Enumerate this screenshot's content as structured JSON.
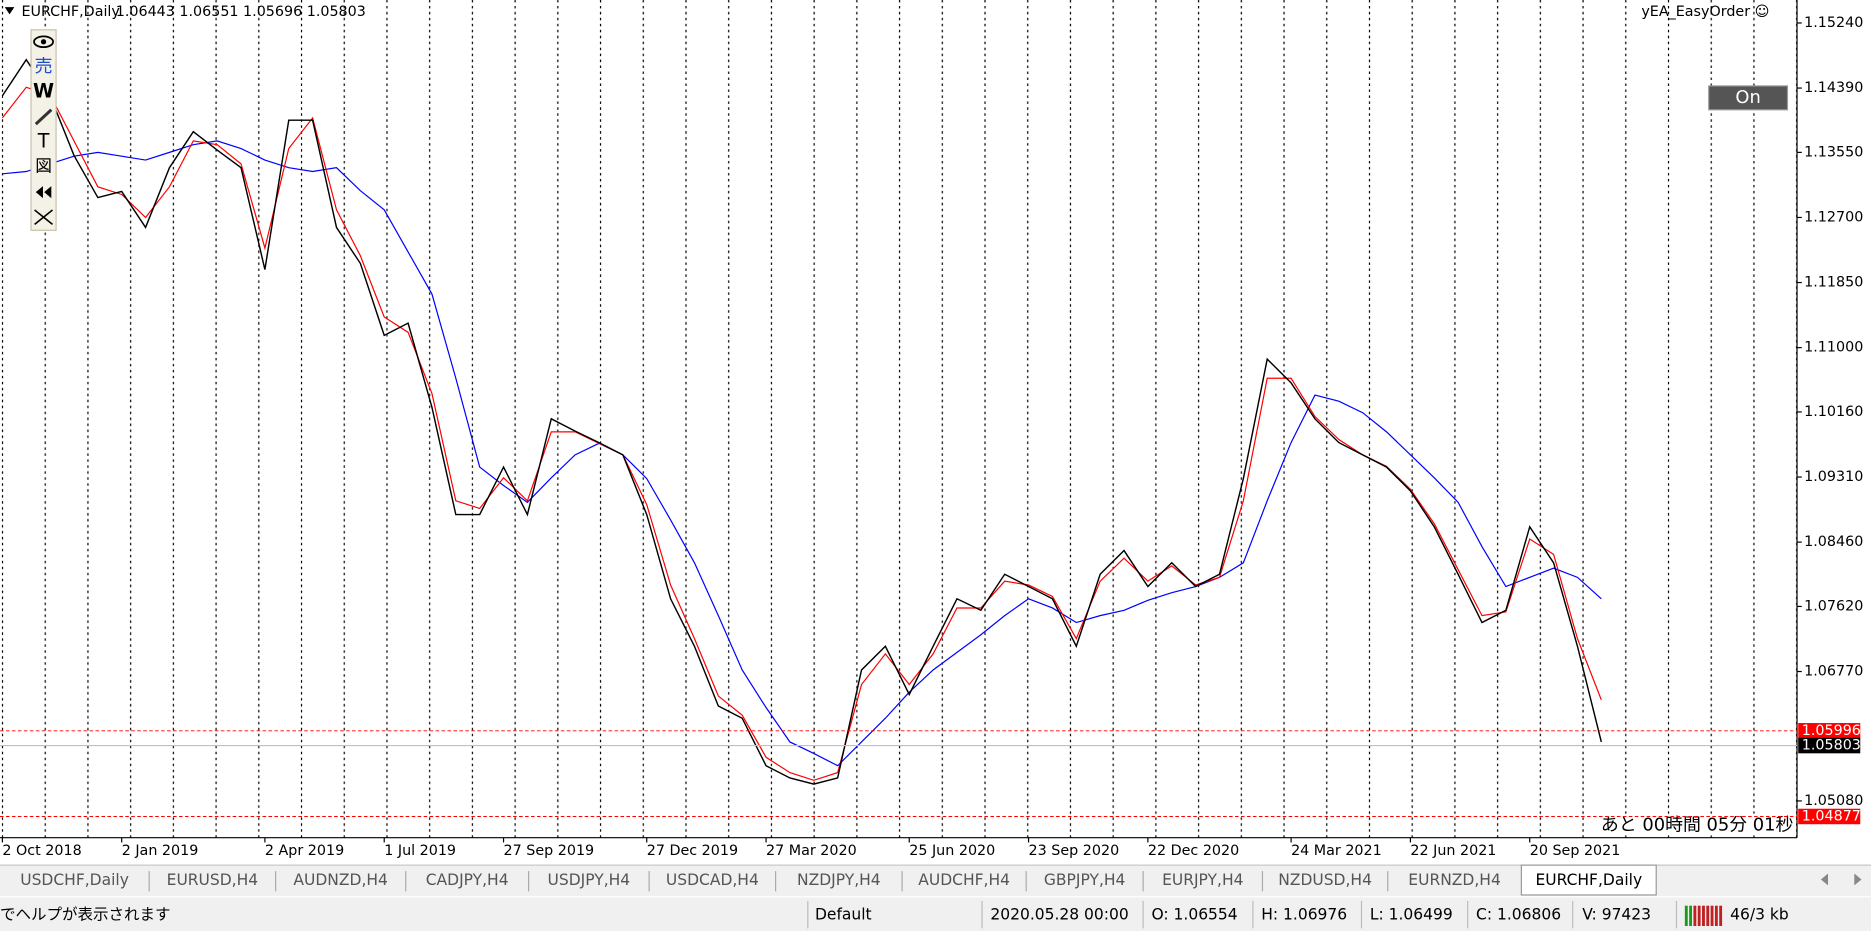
{
  "window": {
    "header": {
      "symbol": "EURCHF,Daily",
      "ohlc": "1.06443 1.06551 1.05696 1.05803"
    },
    "ea_name": "yEA_EasyOrder ☺",
    "button": "On",
    "toolbar": [
      "売",
      "W",
      "T",
      "図"
    ],
    "countdown": "あと 00時間  05分 01秒",
    "tabs": [
      "USDCHF,Daily",
      "EURUSD,H4",
      "AUDNZD,H4",
      "CADJPY,H4",
      "USDJPY,H4",
      "USDCAD,H4",
      "NZDJPY,H4",
      "AUDCHF,H4",
      "GBPJPY,H4",
      "EURJPY,H4",
      "NZDUSD,H4",
      "EURNZD,H4",
      "EURCHF,Daily"
    ],
    "active_tab": 12,
    "status_bar": {
      "help": "でヘルプが表示されます",
      "profile": "Default",
      "time": "2020.05.28 00:00",
      "open": "O: 1.06554",
      "high": "H: 1.06976",
      "low": "L: 1.06499",
      "close": "C: 1.06806",
      "volume": "V: 97423",
      "traffic": "46/3 kb"
    }
  },
  "chart_data": {
    "type": "line",
    "categories": [
      "2 Oct 2018",
      null,
      null,
      null,
      null,
      "2 Jan 2019",
      null,
      null,
      null,
      null,
      null,
      "2 Apr 2019",
      null,
      null,
      null,
      null,
      "1 Jul 2019",
      null,
      null,
      null,
      null,
      "27 Sep 2019",
      null,
      null,
      null,
      null,
      null,
      "27 Dec 2019",
      null,
      null,
      null,
      null,
      "27 Mar 2020",
      null,
      null,
      null,
      null,
      null,
      "25 Jun 2020",
      null,
      null,
      null,
      null,
      "23 Sep 2020",
      null,
      null,
      null,
      null,
      "22 Dec 2020",
      null,
      null,
      null,
      null,
      null,
      "24 Mar 2021",
      null,
      null,
      null,
      null,
      "22 Jun 2021",
      null,
      null,
      null,
      null,
      "20 Sep 2021",
      null,
      null,
      null
    ],
    "series": [
      {
        "color": "#000000",
        "values": [
          1.1429,
          1.1476,
          1.1429,
          1.1351,
          1.1296,
          1.1304,
          1.1257,
          1.1335,
          1.1382,
          1.1358,
          1.1335,
          1.1202,
          1.1397,
          1.1397,
          1.1257,
          1.121,
          1.1116,
          1.1132,
          1.1022,
          1.0882,
          1.0882,
          1.0944,
          1.0882,
          1.1007,
          1.0991,
          1.0976,
          1.096,
          1.0882,
          1.0772,
          1.071,
          1.0632,
          1.0616,
          1.0554,
          1.0538,
          1.053,
          1.0538,
          1.0679,
          1.071,
          1.0647,
          1.071,
          1.0772,
          1.0757,
          1.0804,
          1.0788,
          1.0772,
          1.071,
          1.0804,
          1.0835,
          1.0788,
          1.0819,
          1.0788,
          1.0804,
          1.0929,
          1.1085,
          1.1054,
          1.1007,
          1.0976,
          1.096,
          1.0944,
          1.0913,
          1.0866,
          1.0804,
          1.0741,
          1.0757,
          1.0866,
          1.0819,
          1.071,
          1.0585
        ]
      },
      {
        "color": "#ff0000",
        "values": [
          1.14,
          1.144,
          1.143,
          1.137,
          1.131,
          1.13,
          1.127,
          1.131,
          1.137,
          1.1365,
          1.134,
          1.123,
          1.136,
          1.14,
          1.128,
          1.122,
          1.114,
          1.112,
          1.104,
          1.09,
          1.089,
          1.093,
          1.09,
          1.099,
          1.099,
          1.0975,
          1.096,
          1.0895,
          1.079,
          1.072,
          1.0645,
          1.062,
          1.0565,
          1.0545,
          1.0535,
          1.0545,
          1.066,
          1.07,
          1.066,
          1.07,
          1.076,
          1.076,
          1.0795,
          1.079,
          1.0775,
          1.072,
          1.0795,
          1.0825,
          1.0795,
          1.0815,
          1.079,
          1.08,
          1.09,
          1.106,
          1.106,
          1.101,
          1.098,
          1.096,
          1.0945,
          1.0915,
          1.087,
          1.081,
          1.075,
          1.0755,
          1.085,
          1.083,
          1.072,
          1.064
        ]
      },
      {
        "color": "#0000ff",
        "values": [
          1.1327,
          1.133,
          1.134,
          1.135,
          1.1355,
          1.135,
          1.1345,
          1.1355,
          1.1365,
          1.137,
          1.136,
          1.1345,
          1.1335,
          1.133,
          1.1335,
          1.1305,
          1.128,
          1.1225,
          1.117,
          1.106,
          1.0944,
          1.092,
          1.0898,
          1.093,
          1.096,
          1.0975,
          1.096,
          1.0929,
          1.0875,
          1.0819,
          1.075,
          1.0679,
          1.063,
          1.0585,
          1.057,
          1.0554,
          1.0585,
          1.0616,
          1.065,
          1.0679,
          1.0702,
          1.0725,
          1.075,
          1.0772,
          1.076,
          1.0741,
          1.075,
          1.0757,
          1.077,
          1.078,
          1.0788,
          1.08,
          1.0819,
          1.09,
          1.0976,
          1.1038,
          1.103,
          1.1015,
          1.099,
          1.096,
          1.093,
          1.0898,
          1.084,
          1.0788,
          1.08,
          1.0812,
          1.08,
          1.0772
        ]
      }
    ],
    "ylim": [
      1.1554,
      1.046
    ],
    "yticks": [
      {
        "value": 1.1524,
        "label": "1.15240"
      },
      {
        "value": 1.1439,
        "label": "1.14390"
      },
      {
        "value": 1.1355,
        "label": "1.13550"
      },
      {
        "value": 1.127,
        "label": "1.12700"
      },
      {
        "value": 1.1185,
        "label": "1.11850"
      },
      {
        "value": 1.11,
        "label": "1.11000"
      },
      {
        "value": 1.1016,
        "label": "1.10160"
      },
      {
        "value": 1.0931,
        "label": "1.09310"
      },
      {
        "value": 1.0846,
        "label": "1.08460"
      },
      {
        "value": 1.0762,
        "label": "1.07620"
      },
      {
        "value": 1.0677,
        "label": "1.06770"
      },
      {
        "value": 1.0508,
        "label": "1.05080"
      }
    ],
    "price_lines": [
      {
        "value": 1.05996,
        "label": "1.05996",
        "color": "#ff0000"
      },
      {
        "value": 1.04877,
        "label": "1.04877",
        "color": "#ff0000"
      }
    ],
    "bid": {
      "value": 1.05803,
      "label": "1.05803",
      "color": "#000000"
    }
  }
}
